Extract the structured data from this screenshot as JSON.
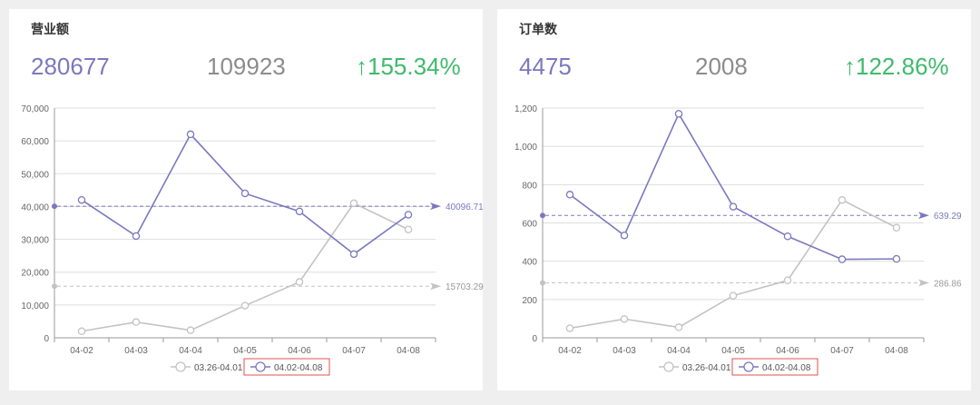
{
  "colors": {
    "current": "#7b78bf",
    "previous": "#c3c3c3",
    "up": "#3fba6c",
    "highlight_box": "#e05050"
  },
  "panels": [
    {
      "title": "营业额",
      "current_value": "280677",
      "previous_value": "109923",
      "growth": "↑155.34%",
      "chart_data": {
        "type": "line",
        "categories": [
          "04-02",
          "04-03",
          "04-04",
          "04-05",
          "04-06",
          "04-07",
          "04-08"
        ],
        "ylim": [
          0,
          70000
        ],
        "yticks": [
          "0",
          "10,000",
          "20,000",
          "30,000",
          "40,000",
          "50,000",
          "60,000",
          "70,000"
        ],
        "ytick_values": [
          0,
          10000,
          20000,
          30000,
          40000,
          50000,
          60000,
          70000
        ],
        "series": [
          {
            "name": "03.26-04.01",
            "color": "#c3c3c3",
            "values": [
              2000,
              4800,
              2300,
              9800,
              17000,
              41000,
              33000
            ]
          },
          {
            "name": "04.02-04.08",
            "color": "#7b78bf",
            "values": [
              42000,
              31000,
              62000,
              44000,
              38500,
              25500,
              37500
            ]
          }
        ],
        "average_lines": [
          {
            "series": "04.02-04.08",
            "value": 40096.71,
            "label": "40096.71",
            "color": "#7b78bf"
          },
          {
            "series": "03.26-04.01",
            "value": 15703.29,
            "label": "15703.29",
            "color": "#c3c3c3"
          }
        ],
        "legend": [
          "03.26-04.01",
          "04.02-04.08"
        ],
        "legend_position": "bottom-center",
        "legend_selected": "04.02-04.08"
      }
    },
    {
      "title": "订单数",
      "current_value": "4475",
      "previous_value": "2008",
      "growth": "↑122.86%",
      "chart_data": {
        "type": "line",
        "categories": [
          "04-02",
          "04-03",
          "04-04",
          "04-05",
          "04-06",
          "04-07",
          "04-08"
        ],
        "ylim": [
          0,
          1200
        ],
        "yticks": [
          "0",
          "200",
          "400",
          "600",
          "800",
          "1,000",
          "1,200"
        ],
        "ytick_values": [
          0,
          200,
          400,
          600,
          800,
          1000,
          1200
        ],
        "series": [
          {
            "name": "03.26-04.01",
            "color": "#c3c3c3",
            "values": [
              50,
              98,
              55,
              220,
              300,
              720,
              575
            ]
          },
          {
            "name": "04.02-04.08",
            "color": "#7b78bf",
            "values": [
              748,
              535,
              1170,
              685,
              530,
              410,
              412
            ]
          }
        ],
        "average_lines": [
          {
            "series": "04.02-04.08",
            "value": 639.29,
            "label": "639.29",
            "color": "#7b78bf"
          },
          {
            "series": "03.26-04.01",
            "value": 286.86,
            "label": "286.86",
            "color": "#c3c3c3"
          }
        ],
        "legend": [
          "03.26-04.01",
          "04.02-04.08"
        ],
        "legend_position": "bottom-center",
        "legend_selected": "04.02-04.08"
      }
    }
  ]
}
